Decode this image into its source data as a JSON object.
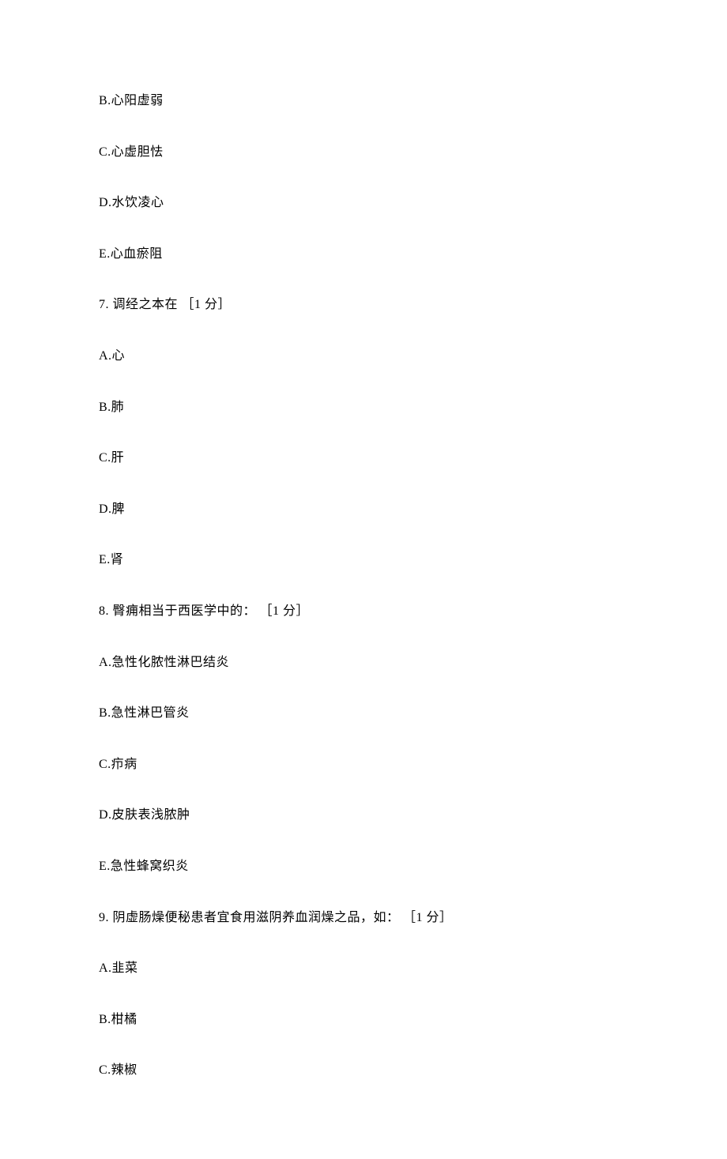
{
  "lines": [
    {
      "text": "B.心阳虚弱",
      "type": "option"
    },
    {
      "text": "C.心虚胆怯",
      "type": "option"
    },
    {
      "text": "D.水饮凌心",
      "type": "option"
    },
    {
      "text": "E.心血瘀阻",
      "type": "option"
    },
    {
      "text": "7. 调经之本在 ［1 分］",
      "type": "question"
    },
    {
      "text": "A.心",
      "type": "option"
    },
    {
      "text": "B.肺",
      "type": "option"
    },
    {
      "text": "C.肝",
      "type": "option"
    },
    {
      "text": "D.脾",
      "type": "option"
    },
    {
      "text": "E.肾",
      "type": "option"
    },
    {
      "text": "8. 臀痈相当于西医学中的： ［1 分］",
      "type": "question"
    },
    {
      "text": "A.急性化脓性淋巴结炎",
      "type": "option"
    },
    {
      "text": "B.急性淋巴管炎",
      "type": "option"
    },
    {
      "text": "C.疖病",
      "type": "option"
    },
    {
      "text": "D.皮肤表浅脓肿",
      "type": "option"
    },
    {
      "text": "E.急性蜂窝织炎",
      "type": "option"
    },
    {
      "text": "9. 阴虚肠燥便秘患者宜食用滋阴养血润燥之品，如： ［1 分］",
      "type": "question"
    },
    {
      "text": "A.韭菜",
      "type": "option"
    },
    {
      "text": "B.柑橘",
      "type": "option"
    },
    {
      "text": "C.辣椒",
      "type": "option"
    }
  ]
}
